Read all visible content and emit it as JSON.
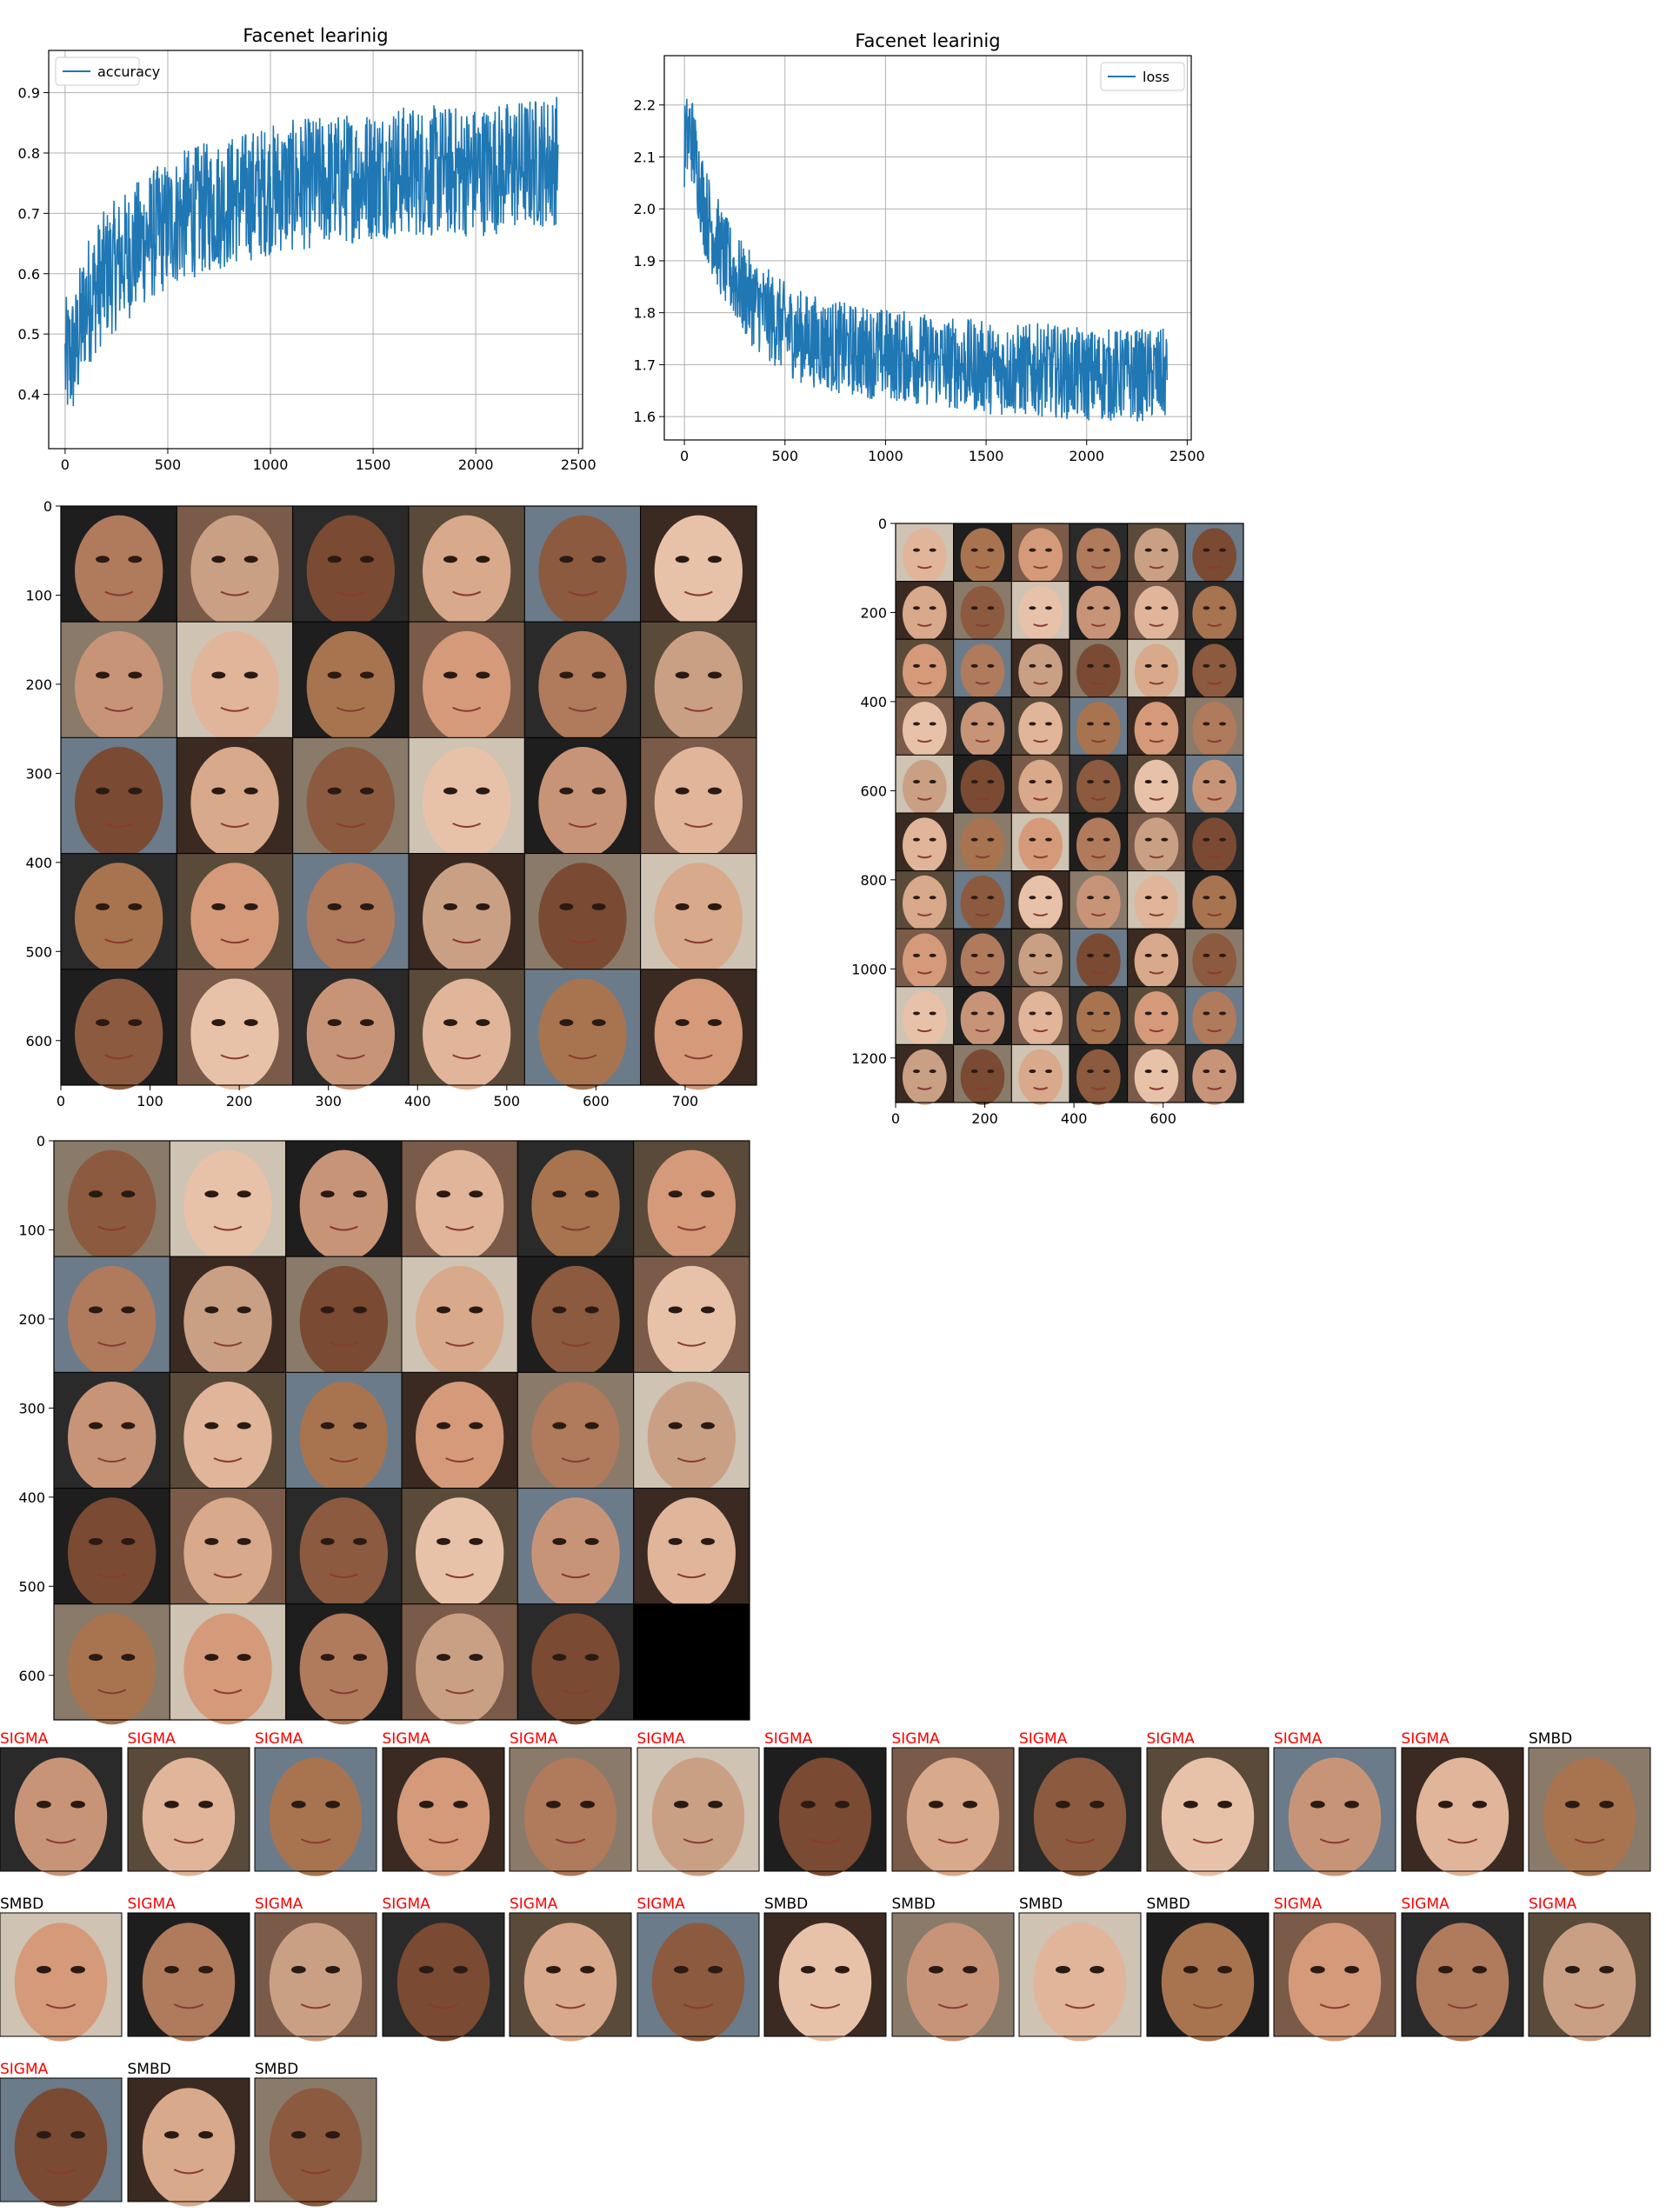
{
  "chart_data": [
    {
      "type": "line",
      "title": "Facenet learinig",
      "series": [
        {
          "name": "accuracy",
          "color": "#1f77b4",
          "anchors": [
            [
              0,
              0.45
            ],
            [
              50,
              0.47
            ],
            [
              100,
              0.55
            ],
            [
              200,
              0.6
            ],
            [
              300,
              0.63
            ],
            [
              400,
              0.66
            ],
            [
              500,
              0.68
            ],
            [
              600,
              0.7
            ],
            [
              700,
              0.71
            ],
            [
              800,
              0.72
            ],
            [
              900,
              0.73
            ],
            [
              1000,
              0.74
            ],
            [
              1200,
              0.75
            ],
            [
              1400,
              0.76
            ],
            [
              1600,
              0.77
            ],
            [
              1800,
              0.77
            ],
            [
              2000,
              0.77
            ],
            [
              2200,
              0.78
            ],
            [
              2400,
              0.79
            ]
          ]
        }
      ],
      "x_range": [
        0,
        2400
      ],
      "xlim": [
        -80,
        2520
      ],
      "ylim": [
        0.31,
        0.97
      ],
      "xticks": [
        "0",
        "500",
        "1000",
        "1500",
        "2000",
        "2500"
      ],
      "xtick_values": [
        0,
        500,
        1000,
        1500,
        2000,
        2500
      ],
      "yticks": [
        "0.4",
        "0.5",
        "0.6",
        "0.7",
        "0.8",
        "0.9"
      ],
      "ytick_values": [
        0.4,
        0.5,
        0.6,
        0.7,
        0.8,
        0.9
      ],
      "grid": true,
      "legend": "upper-left"
    },
    {
      "type": "line",
      "title": "Facenet learinig",
      "series": [
        {
          "name": "loss",
          "color": "#1f77b4",
          "anchors": [
            [
              0,
              2.12
            ],
            [
              30,
              2.15
            ],
            [
              100,
              2.0
            ],
            [
              200,
              1.9
            ],
            [
              300,
              1.84
            ],
            [
              400,
              1.8
            ],
            [
              500,
              1.77
            ],
            [
              600,
              1.75
            ],
            [
              800,
              1.73
            ],
            [
              1000,
              1.72
            ],
            [
              1200,
              1.71
            ],
            [
              1400,
              1.7
            ],
            [
              1600,
              1.69
            ],
            [
              1800,
              1.69
            ],
            [
              2000,
              1.68
            ],
            [
              2200,
              1.68
            ],
            [
              2400,
              1.68
            ]
          ]
        }
      ],
      "x_range": [
        0,
        2400
      ],
      "xlim": [
        -100,
        2520
      ],
      "ylim": [
        1.555,
        2.295
      ],
      "xticks": [
        "0",
        "500",
        "1000",
        "1500",
        "2000",
        "2500"
      ],
      "xtick_values": [
        0,
        500,
        1000,
        1500,
        2000,
        2500
      ],
      "yticks": [
        "1.6",
        "1.7",
        "1.8",
        "1.9",
        "2.0",
        "2.1",
        "2.2"
      ],
      "ytick_values": [
        1.6,
        1.7,
        1.8,
        1.9,
        2.0,
        2.1,
        2.2
      ],
      "grid": true,
      "legend": "upper-right"
    },
    {
      "type": "image-grid",
      "grid": [
        5,
        6
      ],
      "xlim": [
        0,
        780
      ],
      "ylim": [
        650,
        0
      ],
      "xticks": [
        "0",
        "100",
        "200",
        "300",
        "400",
        "500",
        "600",
        "700"
      ],
      "xtick_values": [
        0,
        100,
        200,
        300,
        400,
        500,
        600,
        700
      ],
      "yticks": [
        "0",
        "100",
        "200",
        "300",
        "400",
        "500",
        "600"
      ],
      "ytick_values": [
        0,
        100,
        200,
        300,
        400,
        500,
        600
      ]
    },
    {
      "type": "image-grid",
      "grid": [
        10,
        6
      ],
      "xlim": [
        0,
        780
      ],
      "ylim": [
        1300,
        0
      ],
      "xticks": [
        "0",
        "200",
        "400",
        "600"
      ],
      "xtick_values": [
        0,
        200,
        400,
        600
      ],
      "yticks": [
        "0",
        "200",
        "400",
        "600",
        "800",
        "1000",
        "1200"
      ],
      "ytick_values": [
        0,
        200,
        400,
        600,
        800,
        1000,
        1200
      ]
    },
    {
      "type": "image-grid",
      "grid": [
        5,
        6
      ],
      "xlim": [
        0,
        780
      ],
      "ylim": [
        650,
        0
      ],
      "xticks": [],
      "yticks": [
        "0",
        "100",
        "200",
        "300",
        "400",
        "500",
        "600"
      ],
      "ytick_values": [
        0,
        100,
        200,
        300,
        400,
        500,
        600
      ]
    }
  ],
  "labels": {
    "rows": [
      [
        "SIGMA",
        "SIGMA",
        "SIGMA",
        "SIGMA",
        "SIGMA",
        "SIGMA",
        "SIGMA",
        "SIGMA",
        "SIGMA",
        "SIGMA",
        "SIGMA",
        "SIGMA",
        "SMBD"
      ],
      [
        "SMBD",
        "SIGMA",
        "SIGMA",
        "SIGMA",
        "SIGMA",
        "SIGMA",
        "SMBD",
        "SMBD",
        "SMBD",
        "SMBD",
        "SIGMA",
        "SIGMA",
        "SIGMA"
      ],
      [
        "SIGMA",
        "SMBD",
        "SMBD"
      ]
    ]
  },
  "colors": {
    "line": "#1f77b4",
    "sigma": "#ff0000",
    "smbd": "#000000",
    "grid": "#b0b0b0"
  }
}
